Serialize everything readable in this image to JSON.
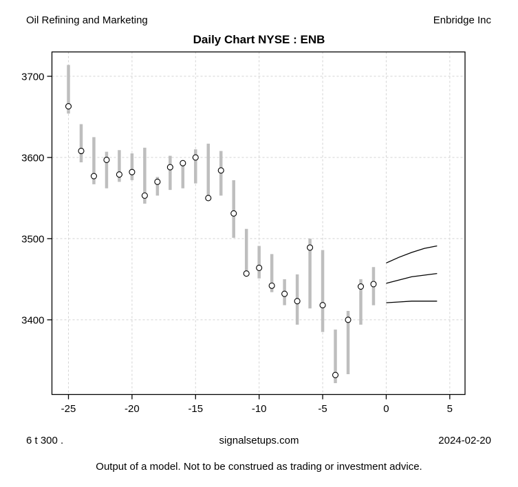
{
  "header": {
    "sector": "Oil Refining and Marketing",
    "company": "Enbridge Inc"
  },
  "title": "Daily Chart NYSE : ENB",
  "footer": {
    "left": "6 t  300 .",
    "center": "signalsetups.com",
    "right": "2024-02-20",
    "disclaimer": "Output of a model.  Not to be construed as trading or investment advice."
  },
  "colors": {
    "background": "#ffffff",
    "bar": "#bebebe",
    "close_marker_stroke": "#000000",
    "close_marker_fill": "#ffffff",
    "grid": "#d3d3d3",
    "axis": "#000000",
    "text": "#000000",
    "forecast_line": "#000000"
  },
  "chart_data": {
    "type": "bar",
    "subtype": "daily-high-low-range-with-close-markers-and-forecast-fan",
    "title": "Daily Chart NYSE : ENB",
    "xlabel": "",
    "ylabel": "",
    "xlim": [
      -26.3,
      6.2
    ],
    "ylim": [
      3308,
      3730
    ],
    "x_ticks": [
      -25,
      -20,
      -15,
      -10,
      -5,
      0,
      5
    ],
    "y_ticks": [
      3400,
      3500,
      3600,
      3700
    ],
    "grid": true,
    "grid_style": "dashed",
    "legend": "none",
    "bars": [
      {
        "x": -25,
        "high": 3714,
        "low": 3654,
        "close": 3663
      },
      {
        "x": -24,
        "high": 3641,
        "low": 3594,
        "close": 3608
      },
      {
        "x": -23,
        "high": 3625,
        "low": 3567,
        "close": 3577
      },
      {
        "x": -22,
        "high": 3607,
        "low": 3562,
        "close": 3597
      },
      {
        "x": -21,
        "high": 3609,
        "low": 3570,
        "close": 3579
      },
      {
        "x": -20,
        "high": 3605,
        "low": 3572,
        "close": 3582
      },
      {
        "x": -19,
        "high": 3612,
        "low": 3543,
        "close": 3553
      },
      {
        "x": -18,
        "high": 3576,
        "low": 3553,
        "close": 3570
      },
      {
        "x": -17,
        "high": 3602,
        "low": 3560,
        "close": 3588
      },
      {
        "x": -16,
        "high": 3596,
        "low": 3562,
        "close": 3593
      },
      {
        "x": -15,
        "high": 3610,
        "low": 3568,
        "close": 3600
      },
      {
        "x": -14,
        "high": 3617,
        "low": 3549,
        "close": 3550
      },
      {
        "x": -13,
        "high": 3608,
        "low": 3553,
        "close": 3584
      },
      {
        "x": -12,
        "high": 3572,
        "low": 3501,
        "close": 3531
      },
      {
        "x": -11,
        "high": 3512,
        "low": 3454,
        "close": 3457
      },
      {
        "x": -10,
        "high": 3491,
        "low": 3451,
        "close": 3464
      },
      {
        "x": -9,
        "high": 3481,
        "low": 3434,
        "close": 3442
      },
      {
        "x": -8,
        "high": 3450,
        "low": 3418,
        "close": 3432
      },
      {
        "x": -7,
        "high": 3456,
        "low": 3394,
        "close": 3423
      },
      {
        "x": -6,
        "high": 3500,
        "low": 3414,
        "close": 3489
      },
      {
        "x": -5,
        "high": 3486,
        "low": 3385,
        "close": 3418
      },
      {
        "x": -4,
        "high": 3388,
        "low": 3322,
        "close": 3332
      },
      {
        "x": -3,
        "high": 3411,
        "low": 3333,
        "close": 3400
      },
      {
        "x": -2,
        "high": 3450,
        "low": 3394,
        "close": 3441
      },
      {
        "x": -1,
        "high": 3465,
        "low": 3418,
        "close": 3444
      }
    ],
    "forecast_lines": [
      {
        "name": "upper",
        "x": [
          0,
          1,
          2,
          3,
          4
        ],
        "y": [
          3470,
          3477,
          3483,
          3488,
          3491
        ]
      },
      {
        "name": "middle",
        "x": [
          0,
          1,
          2,
          3,
          4
        ],
        "y": [
          3445,
          3449,
          3453,
          3455,
          3457
        ]
      },
      {
        "name": "lower",
        "x": [
          0,
          1,
          2,
          3,
          4
        ],
        "y": [
          3421,
          3422,
          3423,
          3423,
          3423
        ]
      }
    ]
  }
}
